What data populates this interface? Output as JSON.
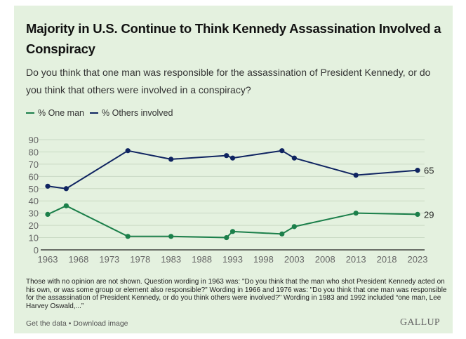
{
  "header": {
    "title": "Majority in U.S. Continue to Think Kennedy Assassination Involved a Conspiracy",
    "subtitle": "Do you think that one man was responsible for the assassination of President Kennedy, or do you think that others were involved in a conspiracy?"
  },
  "colors": {
    "one_man": "#1b7f4a",
    "others": "#0f2461",
    "background": "#e4f1df",
    "grid": "#c9d9c4",
    "axis": "#222222"
  },
  "chart_data": {
    "type": "line",
    "title": "Majority in U.S. Continue to Think Kennedy Assassination Involved a Conspiracy",
    "xlabel": "",
    "ylabel": "",
    "x": [
      1963,
      1966,
      1976,
      1983,
      1992,
      1993,
      2001,
      2003,
      2013,
      2023
    ],
    "series": [
      {
        "name": "% One man",
        "key": "one_man",
        "values": [
          29,
          36,
          11,
          11,
          10,
          15,
          13,
          19,
          30,
          29
        ],
        "end_label": "29"
      },
      {
        "name": "% Others involved",
        "key": "others",
        "values": [
          52,
          50,
          81,
          74,
          77,
          75,
          81,
          75,
          61,
          65
        ],
        "end_label": "65"
      }
    ],
    "xlim": [
      1963,
      2023
    ],
    "ylim": [
      0,
      90
    ],
    "x_ticks": [
      "1963",
      "1968",
      "1973",
      "1978",
      "1983",
      "1988",
      "1993",
      "1998",
      "2003",
      "2008",
      "2013",
      "2018",
      "2023"
    ],
    "y_ticks": [
      "0",
      "10",
      "20",
      "30",
      "40",
      "50",
      "60",
      "70",
      "80",
      "90"
    ],
    "grid": true,
    "legend_position": "top-left"
  },
  "legend": {
    "items": [
      {
        "label": "% One man",
        "key": "one_man"
      },
      {
        "label": "% Others involved",
        "key": "others"
      }
    ]
  },
  "note": "Those with no opinion are not shown. Question wording in 1963 was: \"Do you think that the man who shot President Kennedy acted on his own, or was some group or element also responsible?\" Wording in 1966 and 1976 was: \"Do you think that one man was responsible for the assassination of President Kennedy, or do you think others were involved?\" Wording in 1983 and 1992 included “one man, Lee Harvey Oswald,...”",
  "footer": {
    "get_data": "Get the data",
    "separator": " • ",
    "download": "Download image",
    "brand": "GALLUP"
  }
}
